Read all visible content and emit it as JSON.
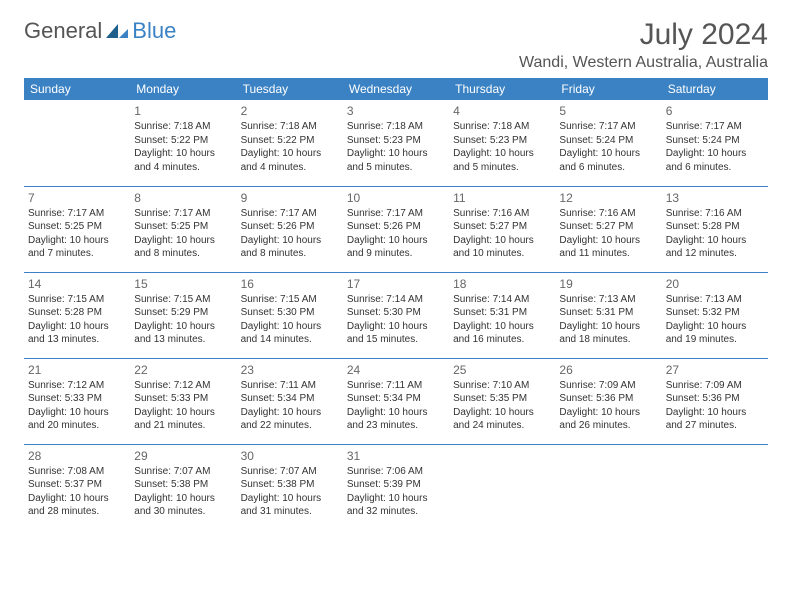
{
  "logo": {
    "general": "General",
    "blue": "Blue"
  },
  "title": "July 2024",
  "location": "Wandi, Western Australia, Australia",
  "colors": {
    "header_bg": "#3b82c4",
    "header_text": "#ffffff",
    "border": "#3b82c4",
    "text": "#333333",
    "muted": "#666666"
  },
  "weekdays": [
    "Sunday",
    "Monday",
    "Tuesday",
    "Wednesday",
    "Thursday",
    "Friday",
    "Saturday"
  ],
  "grid": [
    [
      null,
      {
        "n": "1",
        "sr": "Sunrise: 7:18 AM",
        "ss": "Sunset: 5:22 PM",
        "d1": "Daylight: 10 hours",
        "d2": "and 4 minutes."
      },
      {
        "n": "2",
        "sr": "Sunrise: 7:18 AM",
        "ss": "Sunset: 5:22 PM",
        "d1": "Daylight: 10 hours",
        "d2": "and 4 minutes."
      },
      {
        "n": "3",
        "sr": "Sunrise: 7:18 AM",
        "ss": "Sunset: 5:23 PM",
        "d1": "Daylight: 10 hours",
        "d2": "and 5 minutes."
      },
      {
        "n": "4",
        "sr": "Sunrise: 7:18 AM",
        "ss": "Sunset: 5:23 PM",
        "d1": "Daylight: 10 hours",
        "d2": "and 5 minutes."
      },
      {
        "n": "5",
        "sr": "Sunrise: 7:17 AM",
        "ss": "Sunset: 5:24 PM",
        "d1": "Daylight: 10 hours",
        "d2": "and 6 minutes."
      },
      {
        "n": "6",
        "sr": "Sunrise: 7:17 AM",
        "ss": "Sunset: 5:24 PM",
        "d1": "Daylight: 10 hours",
        "d2": "and 6 minutes."
      }
    ],
    [
      {
        "n": "7",
        "sr": "Sunrise: 7:17 AM",
        "ss": "Sunset: 5:25 PM",
        "d1": "Daylight: 10 hours",
        "d2": "and 7 minutes."
      },
      {
        "n": "8",
        "sr": "Sunrise: 7:17 AM",
        "ss": "Sunset: 5:25 PM",
        "d1": "Daylight: 10 hours",
        "d2": "and 8 minutes."
      },
      {
        "n": "9",
        "sr": "Sunrise: 7:17 AM",
        "ss": "Sunset: 5:26 PM",
        "d1": "Daylight: 10 hours",
        "d2": "and 8 minutes."
      },
      {
        "n": "10",
        "sr": "Sunrise: 7:17 AM",
        "ss": "Sunset: 5:26 PM",
        "d1": "Daylight: 10 hours",
        "d2": "and 9 minutes."
      },
      {
        "n": "11",
        "sr": "Sunrise: 7:16 AM",
        "ss": "Sunset: 5:27 PM",
        "d1": "Daylight: 10 hours",
        "d2": "and 10 minutes."
      },
      {
        "n": "12",
        "sr": "Sunrise: 7:16 AM",
        "ss": "Sunset: 5:27 PM",
        "d1": "Daylight: 10 hours",
        "d2": "and 11 minutes."
      },
      {
        "n": "13",
        "sr": "Sunrise: 7:16 AM",
        "ss": "Sunset: 5:28 PM",
        "d1": "Daylight: 10 hours",
        "d2": "and 12 minutes."
      }
    ],
    [
      {
        "n": "14",
        "sr": "Sunrise: 7:15 AM",
        "ss": "Sunset: 5:28 PM",
        "d1": "Daylight: 10 hours",
        "d2": "and 13 minutes."
      },
      {
        "n": "15",
        "sr": "Sunrise: 7:15 AM",
        "ss": "Sunset: 5:29 PM",
        "d1": "Daylight: 10 hours",
        "d2": "and 13 minutes."
      },
      {
        "n": "16",
        "sr": "Sunrise: 7:15 AM",
        "ss": "Sunset: 5:30 PM",
        "d1": "Daylight: 10 hours",
        "d2": "and 14 minutes."
      },
      {
        "n": "17",
        "sr": "Sunrise: 7:14 AM",
        "ss": "Sunset: 5:30 PM",
        "d1": "Daylight: 10 hours",
        "d2": "and 15 minutes."
      },
      {
        "n": "18",
        "sr": "Sunrise: 7:14 AM",
        "ss": "Sunset: 5:31 PM",
        "d1": "Daylight: 10 hours",
        "d2": "and 16 minutes."
      },
      {
        "n": "19",
        "sr": "Sunrise: 7:13 AM",
        "ss": "Sunset: 5:31 PM",
        "d1": "Daylight: 10 hours",
        "d2": "and 18 minutes."
      },
      {
        "n": "20",
        "sr": "Sunrise: 7:13 AM",
        "ss": "Sunset: 5:32 PM",
        "d1": "Daylight: 10 hours",
        "d2": "and 19 minutes."
      }
    ],
    [
      {
        "n": "21",
        "sr": "Sunrise: 7:12 AM",
        "ss": "Sunset: 5:33 PM",
        "d1": "Daylight: 10 hours",
        "d2": "and 20 minutes."
      },
      {
        "n": "22",
        "sr": "Sunrise: 7:12 AM",
        "ss": "Sunset: 5:33 PM",
        "d1": "Daylight: 10 hours",
        "d2": "and 21 minutes."
      },
      {
        "n": "23",
        "sr": "Sunrise: 7:11 AM",
        "ss": "Sunset: 5:34 PM",
        "d1": "Daylight: 10 hours",
        "d2": "and 22 minutes."
      },
      {
        "n": "24",
        "sr": "Sunrise: 7:11 AM",
        "ss": "Sunset: 5:34 PM",
        "d1": "Daylight: 10 hours",
        "d2": "and 23 minutes."
      },
      {
        "n": "25",
        "sr": "Sunrise: 7:10 AM",
        "ss": "Sunset: 5:35 PM",
        "d1": "Daylight: 10 hours",
        "d2": "and 24 minutes."
      },
      {
        "n": "26",
        "sr": "Sunrise: 7:09 AM",
        "ss": "Sunset: 5:36 PM",
        "d1": "Daylight: 10 hours",
        "d2": "and 26 minutes."
      },
      {
        "n": "27",
        "sr": "Sunrise: 7:09 AM",
        "ss": "Sunset: 5:36 PM",
        "d1": "Daylight: 10 hours",
        "d2": "and 27 minutes."
      }
    ],
    [
      {
        "n": "28",
        "sr": "Sunrise: 7:08 AM",
        "ss": "Sunset: 5:37 PM",
        "d1": "Daylight: 10 hours",
        "d2": "and 28 minutes."
      },
      {
        "n": "29",
        "sr": "Sunrise: 7:07 AM",
        "ss": "Sunset: 5:38 PM",
        "d1": "Daylight: 10 hours",
        "d2": "and 30 minutes."
      },
      {
        "n": "30",
        "sr": "Sunrise: 7:07 AM",
        "ss": "Sunset: 5:38 PM",
        "d1": "Daylight: 10 hours",
        "d2": "and 31 minutes."
      },
      {
        "n": "31",
        "sr": "Sunrise: 7:06 AM",
        "ss": "Sunset: 5:39 PM",
        "d1": "Daylight: 10 hours",
        "d2": "and 32 minutes."
      },
      null,
      null,
      null
    ]
  ]
}
